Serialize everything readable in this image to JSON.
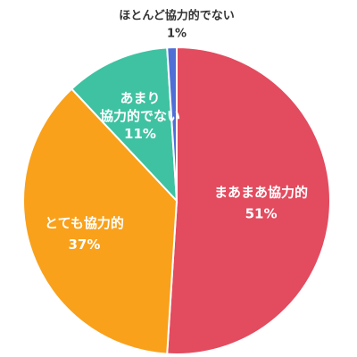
{
  "chart_data": {
    "type": "pie",
    "start_angle_deg": 0,
    "direction": "clockwise",
    "slices": [
      {
        "name": "まあまあ協力的",
        "value": 51,
        "label": "51%",
        "color": "#e34b5f"
      },
      {
        "name": "とても協力的",
        "value": 37,
        "label": "37%",
        "color": "#f9a11b"
      },
      {
        "name": "あまり協力的でない",
        "value": 11,
        "label": "11%",
        "color": "#3fc2a1"
      },
      {
        "name": "ほとんど協力的でない",
        "value": 1,
        "label": "1%",
        "color": "#4f6fd6"
      }
    ]
  }
}
